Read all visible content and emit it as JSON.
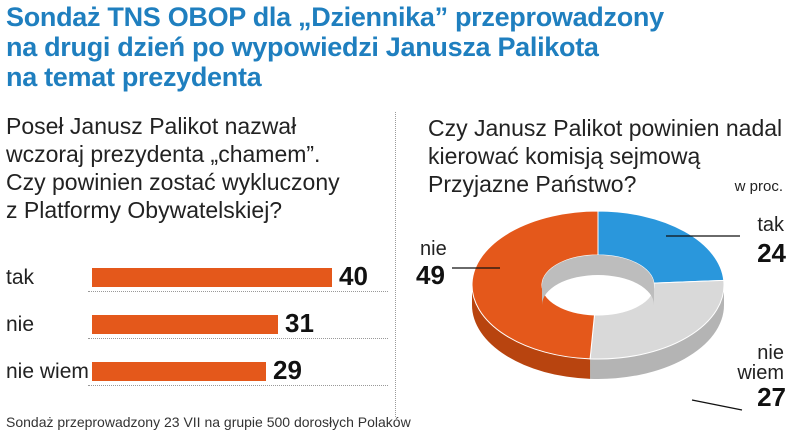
{
  "title": {
    "lines": [
      "Sondaż TNS OBOP dla „Dziennika” przeprowadzony",
      "na drugi dzień po wypowiedzi Janusza Palikota",
      "na temat prezydenta"
    ]
  },
  "colors": {
    "title": "#1f7fbf",
    "orange": "#e4581b",
    "blue": "#2a97dc",
    "gray": "#d9d9d9"
  },
  "chart_data": [
    {
      "type": "bar",
      "title": "Poseł Janusz Palikot nazwał wczoraj prezydenta „chamem”. Czy powinien zostać wykluczony z Platformy Obywatelskiej?",
      "title_lines": [
        "Poseł Janusz Palikot nazwał",
        "wczoraj prezydenta „chamem”.",
        "Czy powinien zostać wykluczony",
        "z Platformy Obywatelskiej?"
      ],
      "categories": [
        "tak",
        "nie",
        "nie wiem"
      ],
      "values": [
        40,
        31,
        29
      ],
      "value_labels": [
        "40",
        "31",
        "29"
      ],
      "xlim": [
        0,
        40
      ],
      "orientation": "horizontal"
    },
    {
      "type": "pie",
      "donut": true,
      "title": "Czy Janusz Palikot powinien nadal kierować komisją sejmową Przyjazne Państwo?",
      "title_lines": [
        "Czy Janusz Palikot powinien nadal",
        "kierować komisją sejmową",
        "Przyjazne Państwo?"
      ],
      "unit": "w proc.",
      "slices": [
        {
          "label": "tak",
          "value": 24,
          "value_label": "24"
        },
        {
          "label": "nie wiem",
          "label_lines": [
            "nie",
            "wiem"
          ],
          "value": 27,
          "value_label": "27"
        },
        {
          "label": "nie",
          "value": 49,
          "value_label": "49"
        }
      ]
    }
  ],
  "footer": {
    "source": "Sondaż przeprowadzony 23 VII na grupie 500 dorosłych Polaków"
  }
}
